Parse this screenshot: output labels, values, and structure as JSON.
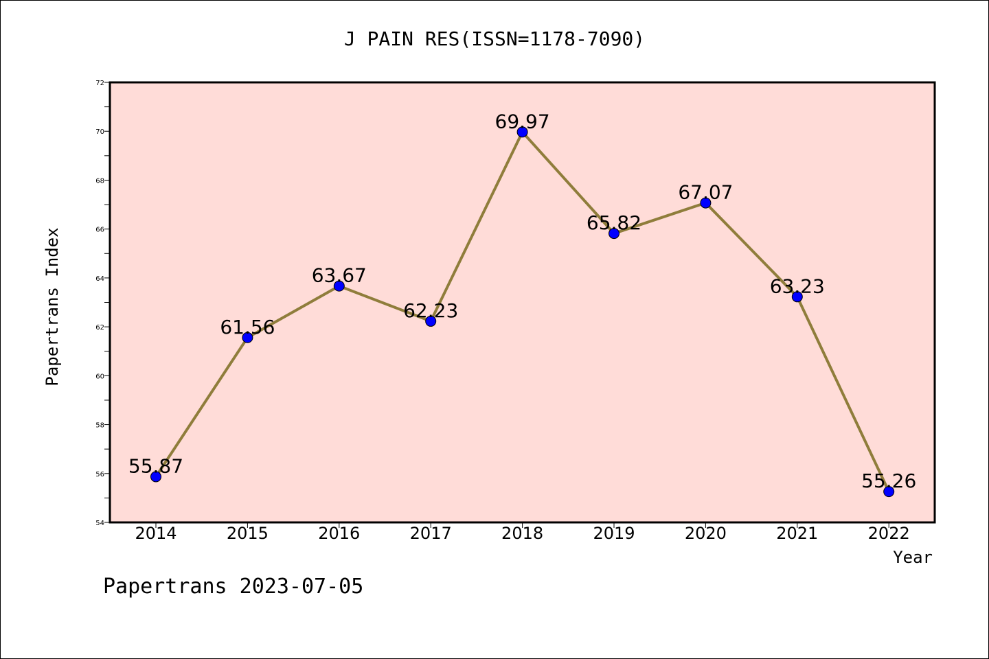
{
  "chart_data": {
    "type": "line",
    "title": "J PAIN RES(ISSN=1178-7090)",
    "xlabel": "Year",
    "ylabel": "Papertrans Index",
    "footer": "Papertrans 2023-07-05",
    "categories": [
      "2014",
      "2015",
      "2016",
      "2017",
      "2018",
      "2019",
      "2020",
      "2021",
      "2022"
    ],
    "series": [
      {
        "values": [
          55.87,
          61.56,
          63.67,
          62.23,
          69.97,
          65.82,
          67.07,
          63.23,
          55.26
        ],
        "labels": [
          "55.87",
          "61.56",
          "63.67",
          "62.23",
          "69.97",
          "65.82",
          "67.07",
          "63.23",
          "55.26"
        ]
      }
    ],
    "ylim": [
      54,
      72
    ],
    "yticks": [
      "54",
      "56",
      "58",
      "60",
      "62",
      "64",
      "66",
      "68",
      "70",
      "72"
    ],
    "grid": false,
    "colors": {
      "plot_background": "#ffdcd8",
      "line": "#8f7d3b",
      "marker": "#0000ff",
      "axis": "#000000"
    }
  }
}
